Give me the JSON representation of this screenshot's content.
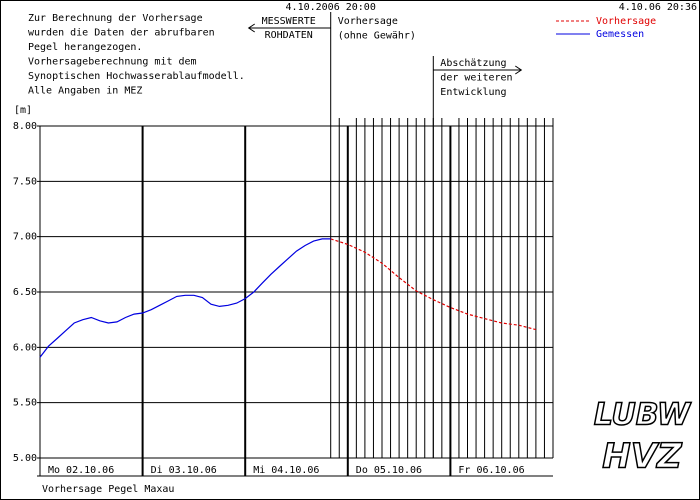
{
  "chart_data": {
    "type": "line",
    "timestamp": "4.10.06 20:36",
    "notes": [
      "Zur Berechnung der Vorhersage",
      "wurden die Daten der abrufbaren",
      "Pegel herangezogen.",
      "Vorhersageberechnung mit dem",
      "Synoptischen Hochwasserablaufmodell.",
      "Alle Angaben in MEZ"
    ],
    "y_label": "[m]",
    "footer": "Vorhersage Pegel Maxau",
    "logo": [
      "LUBW",
      "HVZ"
    ],
    "xlim": [
      0,
      120
    ],
    "xticks": [
      {
        "value": 0,
        "label": "Mo 02.10.06"
      },
      {
        "value": 24,
        "label": "Di 03.10.06"
      },
      {
        "value": 48,
        "label": "Mi 04.10.06"
      },
      {
        "value": 72,
        "label": "Do 05.10.06"
      },
      {
        "value": 96,
        "label": "Fr 06.10.06"
      }
    ],
    "xgrid_minor": [
      70,
      74,
      76,
      78,
      80,
      82,
      84,
      86,
      88,
      90,
      92,
      94,
      98,
      100,
      102,
      104,
      106,
      108,
      110,
      112,
      114,
      116,
      118,
      120
    ],
    "ylim": [
      5,
      8
    ],
    "yticks": [
      {
        "value": 5,
        "label": "5.00"
      },
      {
        "value": 5.5,
        "label": "5.50"
      },
      {
        "value": 6,
        "label": "6.00"
      },
      {
        "value": 6.5,
        "label": "6.50"
      },
      {
        "value": 7,
        "label": "7.00"
      },
      {
        "value": 7.5,
        "label": "7.50"
      },
      {
        "value": 8,
        "label": "8.00"
      }
    ],
    "grid": true,
    "annotations": [
      {
        "x": 68,
        "top": "4.10.2006 20:00",
        "left": [
          "MESSWERTE",
          "ROHDATEN"
        ],
        "right": [
          "Vorhersage",
          "(ohne Gewähr)"
        ]
      },
      {
        "x": 92,
        "right": [
          "Abschätzung",
          "der weiteren",
          "Entwicklung"
        ]
      }
    ],
    "series": [
      {
        "name": "Vorhersage",
        "color": "#e00000",
        "dashed": true,
        "x": [
          68,
          72,
          76,
          80,
          84,
          88,
          92,
          96,
          100,
          104,
          108,
          112,
          116
        ],
        "values": [
          6.98,
          6.93,
          6.86,
          6.76,
          6.63,
          6.51,
          6.43,
          6.36,
          6.3,
          6.26,
          6.22,
          6.2,
          6.16
        ]
      },
      {
        "name": "Gemessen",
        "color": "#0000e0",
        "dashed": false,
        "x": [
          0,
          2,
          4,
          6,
          8,
          10,
          12,
          14,
          16,
          18,
          20,
          22,
          24,
          26,
          28,
          30,
          32,
          34,
          36,
          38,
          40,
          42,
          44,
          46,
          48,
          50,
          52,
          54,
          56,
          58,
          60,
          62,
          64,
          66,
          68
        ],
        "values": [
          5.91,
          6.01,
          6.08,
          6.15,
          6.22,
          6.25,
          6.27,
          6.24,
          6.22,
          6.23,
          6.27,
          6.3,
          6.31,
          6.34,
          6.38,
          6.42,
          6.46,
          6.47,
          6.47,
          6.45,
          6.39,
          6.37,
          6.38,
          6.4,
          6.44,
          6.5,
          6.58,
          6.66,
          6.73,
          6.8,
          6.87,
          6.92,
          6.96,
          6.98,
          6.98
        ]
      }
    ]
  }
}
